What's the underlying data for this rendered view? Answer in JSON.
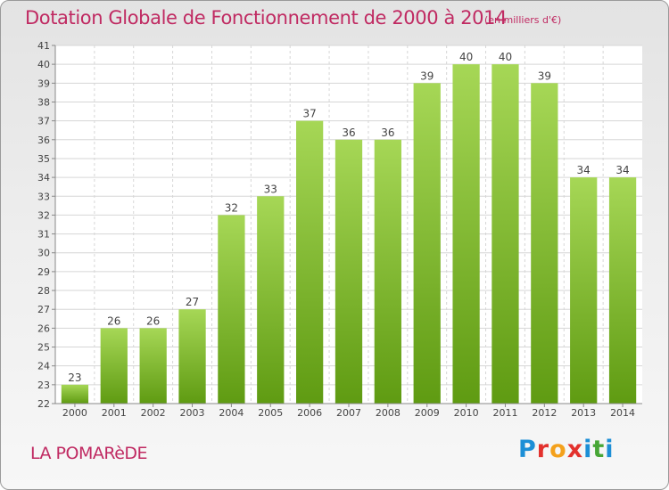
{
  "header": {
    "title": "Dotation Globale de Fonctionnement de 2000 à 2014",
    "unit": "(en milliers d'€)"
  },
  "footer": {
    "place": "LA POMARèDE",
    "logo": {
      "letters": [
        "P",
        "r",
        "o",
        "x",
        "i",
        "t",
        "i"
      ],
      "colors": [
        "#1d8fd6",
        "#e3312d",
        "#f4a11c",
        "#e3312d",
        "#1d8fd6",
        "#47a636",
        "#1d8fd6"
      ]
    }
  },
  "colors": {
    "bar_top": "#a6d756",
    "bar_bottom": "#5f9b12",
    "plot_bg": "#ffffff",
    "grid": "#d6d6d6",
    "text": "#444444"
  },
  "chart_data": {
    "type": "bar",
    "title": "Dotation Globale de Fonctionnement de 2000 à 2014",
    "subtitle": "(en milliers d'€)",
    "categories": [
      "2000",
      "2001",
      "2002",
      "2003",
      "2004",
      "2005",
      "2006",
      "2007",
      "2008",
      "2009",
      "2010",
      "2011",
      "2012",
      "2013",
      "2014"
    ],
    "values": [
      23,
      26,
      26,
      27,
      32,
      33,
      37,
      36,
      36,
      39,
      40,
      40,
      39,
      34,
      34
    ],
    "data_labels": [
      "23",
      "26",
      "26",
      "27",
      "32",
      "33",
      "37",
      "36",
      "36",
      "39",
      "40",
      "40",
      "39",
      "34",
      "34"
    ],
    "ylim": [
      22,
      41
    ],
    "yticks": [
      "22",
      "23",
      "24",
      "25",
      "26",
      "27",
      "28",
      "29",
      "30",
      "31",
      "32",
      "33",
      "34",
      "35",
      "36",
      "37",
      "38",
      "39",
      "40",
      "41"
    ],
    "xlabel": "",
    "ylabel": "",
    "grid": true
  }
}
